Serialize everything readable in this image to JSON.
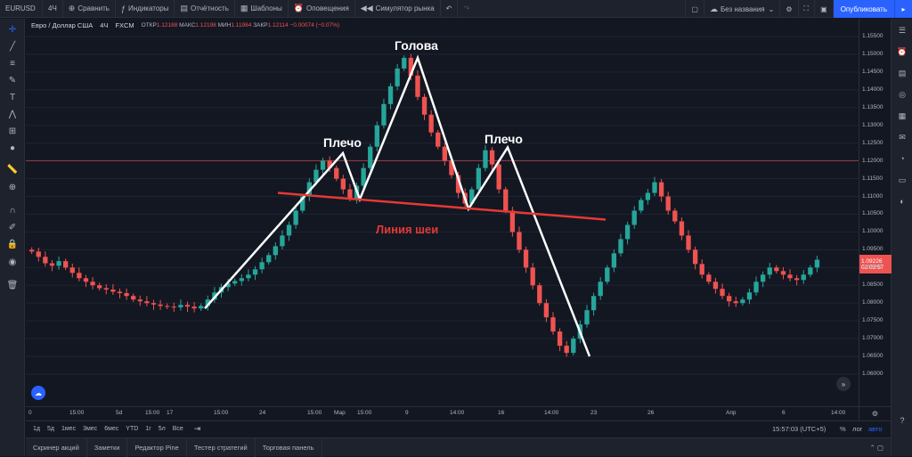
{
  "toolbar": {
    "symbol": "EURUSD",
    "interval": "4Ч",
    "compare": "Сравнить",
    "indicators": "Индикаторы",
    "reports": "Отчётность",
    "templates": "Шаблоны",
    "alerts": "Оповещения",
    "simulator": "Симулятор рынка",
    "layout_name": "Без названия",
    "publish": "Опубликовать"
  },
  "legend": {
    "title": "Евро / Доллар США",
    "interval": "4Ч",
    "exchange": "FXCM",
    "open_label": "ОТКР",
    "open": "1.12188",
    "high_label": "МАКС",
    "high": "1.12198",
    "low_label": "МИН",
    "low": "1.11984",
    "close_label": "ЗАКР",
    "close": "1.12114",
    "change": "−0.00074 (−0.07%)"
  },
  "annotations": {
    "head": "Голова",
    "left_shoulder": "Плечо",
    "right_shoulder": "Плечо",
    "neckline": "Линия шеи"
  },
  "price_axis": [
    "1.15500",
    "1.15000",
    "1.14500",
    "1.14000",
    "1.13500",
    "1.13000",
    "1.12500",
    "1.12000",
    "1.11500",
    "1.11000",
    "1.10500",
    "1.10000",
    "1.09500",
    "1.09000",
    "1.08500",
    "1.08000",
    "1.07500",
    "1.07000",
    "1.06500",
    "1.06000"
  ],
  "current_price": "1.09226",
  "countdown": "02:02:57",
  "time_axis": [
    "0",
    "15:00",
    "5d",
    "15:00",
    "17",
    "15:00",
    "24",
    "15:00",
    "Мар",
    "15:00",
    "9",
    "14:00",
    "16",
    "14:00",
    "23",
    "26",
    "Апр",
    "6",
    "14:00"
  ],
  "ranges": [
    "1д",
    "5д",
    "1мес",
    "3мес",
    "6мес",
    "YTD",
    "1г",
    "5л",
    "Все"
  ],
  "clock": "15:57:03 (UTC+5)",
  "bottom_right": {
    "percent": "%",
    "log": "лог",
    "auto": "авто"
  },
  "bottom_tabs": [
    "Скринер акций",
    "Заметки",
    "Редактор Pine",
    "Тестер стратегий",
    "Торговая панель"
  ],
  "colors": {
    "up": "#26a69a",
    "down": "#ef5350",
    "neckline": "#e53935",
    "pattern": "#ffffff",
    "accent": "#2962ff"
  },
  "chart_data": {
    "type": "candlestick",
    "title": "Евро / Доллар США",
    "ylim": [
      1.0575,
      1.1575
    ],
    "price_levels": {
      "resistance": 1.1201
    },
    "pattern_points": [
      1.0785,
      1.1222,
      1.1092,
      1.149,
      1.1065,
      1.1238,
      1.065
    ],
    "neckline": [
      1.111,
      1.1035
    ],
    "closes": [
      1.0945,
      1.093,
      1.0912,
      1.0905,
      1.0918,
      1.09,
      1.0885,
      1.087,
      1.086,
      1.085,
      1.0842,
      1.0838,
      1.0832,
      1.0828,
      1.082,
      1.081,
      1.0805,
      1.08,
      1.0796,
      1.0792,
      1.079,
      1.0788,
      1.0795,
      1.079,
      1.0785,
      1.0792,
      1.081,
      1.083,
      1.0845,
      1.0855,
      1.0862,
      1.087,
      1.088,
      1.0895,
      1.0915,
      1.0935,
      1.096,
      1.099,
      1.102,
      1.106,
      1.11,
      1.114,
      1.1175,
      1.12,
      1.118,
      1.115,
      1.112,
      1.1095,
      1.113,
      1.118,
      1.124,
      1.13,
      1.136,
      1.141,
      1.146,
      1.149,
      1.144,
      1.138,
      1.133,
      1.128,
      1.124,
      1.12,
      1.116,
      1.111,
      1.108,
      1.112,
      1.118,
      1.123,
      1.119,
      1.112,
      1.106,
      1.1,
      1.095,
      1.09,
      1.085,
      1.08,
      1.076,
      1.072,
      1.068,
      1.066,
      1.07,
      1.074,
      1.078,
      1.082,
      1.086,
      1.09,
      1.094,
      1.098,
      1.102,
      1.106,
      1.109,
      1.111,
      1.114,
      1.11,
      1.106,
      1.103,
      1.099,
      1.095,
      1.091,
      1.088,
      1.086,
      1.084,
      1.082,
      1.0805,
      1.08,
      1.081,
      1.083,
      1.086,
      1.088,
      1.09,
      1.089,
      1.088,
      1.087,
      1.0865,
      1.088,
      1.09,
      1.0922
    ]
  }
}
